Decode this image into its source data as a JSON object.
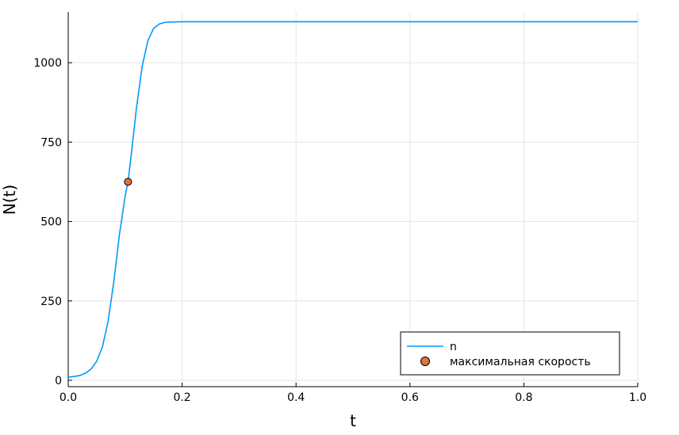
{
  "chart_data": {
    "type": "line",
    "title": "",
    "xlabel": "t",
    "ylabel": "N(t)",
    "xlim": [
      0.0,
      1.0
    ],
    "ylim": [
      -20,
      1160
    ],
    "grid": true,
    "legend_position": "bottom-right",
    "x_ticks": [
      0.0,
      0.2,
      0.4,
      0.6,
      0.8,
      1.0
    ],
    "x_tick_labels": [
      "0.0",
      "0.2",
      "0.4",
      "0.6",
      "0.8",
      "1.0"
    ],
    "y_ticks": [
      0,
      250,
      500,
      750,
      1000
    ],
    "y_tick_labels": [
      "0",
      "250",
      "500",
      "750",
      "1000"
    ],
    "series": [
      {
        "name": "n",
        "kind": "line",
        "color": "#009af9",
        "x": [
          0.0,
          0.01,
          0.02,
          0.03,
          0.04,
          0.05,
          0.06,
          0.07,
          0.08,
          0.09,
          0.1,
          0.105,
          0.11,
          0.12,
          0.13,
          0.14,
          0.15,
          0.16,
          0.17,
          0.18,
          0.2,
          0.25,
          0.3,
          0.4,
          0.5,
          0.6,
          0.7,
          0.8,
          0.9,
          1.0
        ],
        "y": [
          10,
          12,
          15,
          22,
          35,
          60,
          105,
          185,
          310,
          460,
          580,
          625,
          700,
          860,
          990,
          1070,
          1108,
          1122,
          1127,
          1128,
          1129,
          1129,
          1129,
          1129,
          1129,
          1129,
          1129,
          1129,
          1129,
          1129
        ]
      },
      {
        "name": "максимальная скорость",
        "kind": "scatter",
        "color": "#e26f46",
        "x": [
          0.105
        ],
        "y": [
          625
        ]
      }
    ]
  }
}
